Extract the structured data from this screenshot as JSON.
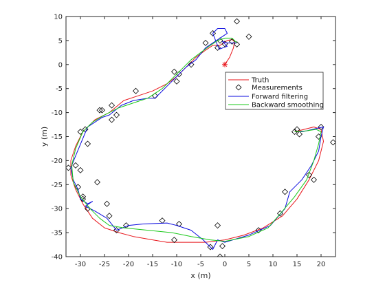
{
  "chart_data": {
    "type": "line",
    "xlabel": "x (m)",
    "ylabel": "y (m)",
    "xlim": [
      -33,
      23
    ],
    "ylim": [
      -40,
      10
    ],
    "xticks": [
      -30,
      -25,
      -20,
      -15,
      -10,
      -5,
      0,
      5,
      10,
      15,
      20
    ],
    "yticks": [
      10,
      5,
      0,
      -5,
      -10,
      -15,
      -20,
      -25,
      -30,
      -35,
      -40
    ],
    "grid": false,
    "legend_position": "right",
    "colors": {
      "truth": "#e8141a",
      "measurements": "#000000",
      "forward": "#0a0adf",
      "backward": "#18c818",
      "start_marker": "#e8141a"
    },
    "start_marker": {
      "x": 0,
      "y": 0
    },
    "series": [
      {
        "name": "Truth",
        "kind": "line",
        "points": [
          [
            0,
            0
          ],
          [
            1,
            1.5
          ],
          [
            1.8,
            3.5
          ],
          [
            2,
            4.8
          ],
          [
            1.5,
            5.2
          ],
          [
            0.5,
            5
          ],
          [
            -1,
            4
          ],
          [
            -2.5,
            4
          ],
          [
            -4,
            3
          ],
          [
            -6,
            1.5
          ],
          [
            -8,
            -0.5
          ],
          [
            -10,
            -2.5
          ],
          [
            -12,
            -4
          ],
          [
            -15,
            -5.5
          ],
          [
            -18,
            -6.5
          ],
          [
            -21,
            -7.5
          ],
          [
            -24,
            -10
          ],
          [
            -27,
            -11.5
          ],
          [
            -29.5,
            -14
          ],
          [
            -31,
            -17
          ],
          [
            -32,
            -20
          ],
          [
            -32,
            -23
          ],
          [
            -31,
            -26
          ],
          [
            -29.5,
            -29
          ],
          [
            -27.5,
            -32
          ],
          [
            -25,
            -34
          ],
          [
            -22,
            -35
          ],
          [
            -19,
            -35.8
          ],
          [
            -15,
            -36.5
          ],
          [
            -12,
            -37
          ],
          [
            -8,
            -37
          ],
          [
            -4,
            -37
          ],
          [
            0,
            -36.5
          ],
          [
            4,
            -35.5
          ],
          [
            8,
            -34
          ],
          [
            12,
            -31.5
          ],
          [
            15,
            -28
          ],
          [
            17.5,
            -24
          ],
          [
            19.5,
            -20
          ],
          [
            20.5,
            -16
          ],
          [
            20,
            -13.5
          ],
          [
            18.5,
            -13
          ],
          [
            16.5,
            -13.5
          ],
          [
            14.5,
            -14
          ]
        ]
      },
      {
        "name": "Measurements",
        "kind": "scatter",
        "points": [
          [
            2.5,
            4.2
          ],
          [
            1.5,
            4.8
          ],
          [
            -1,
            5
          ],
          [
            0,
            4.3
          ],
          [
            -1.5,
            3.5
          ],
          [
            -4,
            4.5
          ],
          [
            -2.5,
            6.5
          ],
          [
            2.5,
            9
          ],
          [
            5,
            5.8
          ],
          [
            -7,
            0
          ],
          [
            -9.5,
            -2
          ],
          [
            -10,
            -3.5
          ],
          [
            -10.5,
            -1.5
          ],
          [
            -14.5,
            -6.5
          ],
          [
            -18.5,
            -5.5
          ],
          [
            -22.5,
            -10.5
          ],
          [
            -23.5,
            -11.5
          ],
          [
            -25.5,
            -9.5
          ],
          [
            -26,
            -9.5
          ],
          [
            -23.5,
            -8.5
          ],
          [
            -30,
            -14
          ],
          [
            -29,
            -13.5
          ],
          [
            -28.5,
            -16.5
          ],
          [
            -32.5,
            -21.5
          ],
          [
            -31,
            -21
          ],
          [
            -30,
            -22
          ],
          [
            -30.5,
            -25.5
          ],
          [
            -26.5,
            -24.5
          ],
          [
            -29.5,
            -28
          ],
          [
            -29.5,
            -27.5
          ],
          [
            -28.5,
            -30
          ],
          [
            -24.5,
            -29
          ],
          [
            -24,
            -31.5
          ],
          [
            -22.5,
            -34.5
          ],
          [
            -20.5,
            -33.5
          ],
          [
            -13,
            -32.5
          ],
          [
            -10.5,
            -36.5
          ],
          [
            -9.5,
            -33.2
          ],
          [
            -1.5,
            -33.5
          ],
          [
            -3,
            -38
          ],
          [
            -1,
            -40
          ],
          [
            -0.5,
            -37.8
          ],
          [
            7,
            -34.5
          ],
          [
            11.5,
            -31
          ],
          [
            12.5,
            -26.5
          ],
          [
            14.5,
            -14
          ],
          [
            15,
            -13.5
          ],
          [
            15.5,
            -14.5
          ],
          [
            17.5,
            -23
          ],
          [
            18.5,
            -24
          ],
          [
            19.5,
            -15
          ],
          [
            20,
            -13
          ],
          [
            22.5,
            -16.2
          ]
        ]
      },
      {
        "name": "Forward filtering",
        "kind": "line",
        "points": [
          [
            2.5,
            4.5
          ],
          [
            0.5,
            4.5
          ],
          [
            -0.5,
            4.8
          ],
          [
            0.5,
            3.8
          ],
          [
            -1.2,
            3.2
          ],
          [
            -2.5,
            6.5
          ],
          [
            -1.5,
            7.5
          ],
          [
            0,
            7.5
          ],
          [
            0.5,
            6.5
          ],
          [
            -4,
            3.5
          ],
          [
            -6,
            1
          ],
          [
            -8,
            -0.5
          ],
          [
            -10,
            -2.5
          ],
          [
            -12,
            -4.5
          ],
          [
            -14.5,
            -7
          ],
          [
            -16,
            -7
          ],
          [
            -19,
            -7.5
          ],
          [
            -21.5,
            -8.5
          ],
          [
            -24,
            -10.5
          ],
          [
            -25.5,
            -11
          ],
          [
            -27,
            -12
          ],
          [
            -28.5,
            -13
          ],
          [
            -31,
            -19
          ],
          [
            -32,
            -21.5
          ],
          [
            -31.5,
            -24
          ],
          [
            -30.5,
            -26
          ],
          [
            -30,
            -28
          ],
          [
            -28.5,
            -29
          ],
          [
            -27.5,
            -28.5
          ],
          [
            -29,
            -29.5
          ],
          [
            -27,
            -30.5
          ],
          [
            -24.5,
            -32
          ],
          [
            -22.5,
            -34.5
          ],
          [
            -20,
            -33.5
          ],
          [
            -17,
            -33.2
          ],
          [
            -12,
            -33
          ],
          [
            -10,
            -33.5
          ],
          [
            -7,
            -34.5
          ],
          [
            -4.5,
            -36.5
          ],
          [
            -2.5,
            -38.5
          ],
          [
            -1.5,
            -36.5
          ],
          [
            0,
            -37
          ],
          [
            5,
            -35.5
          ],
          [
            9.5,
            -33.5
          ],
          [
            12.5,
            -30
          ],
          [
            13.5,
            -26.5
          ],
          [
            16,
            -24
          ],
          [
            18,
            -21
          ],
          [
            19.5,
            -18
          ],
          [
            20,
            -15
          ],
          [
            20.5,
            -13
          ],
          [
            19.5,
            -13.2
          ],
          [
            17,
            -13.8
          ],
          [
            16,
            -14
          ],
          [
            14.5,
            -14
          ]
        ]
      },
      {
        "name": "Backward smoothing",
        "kind": "line",
        "points": [
          [
            2.5,
            4.5
          ],
          [
            1.5,
            5.5
          ],
          [
            0,
            5.5
          ],
          [
            -1.5,
            5
          ],
          [
            -3,
            4
          ],
          [
            -5,
            2.5
          ],
          [
            -7,
            1
          ],
          [
            -9,
            -1
          ],
          [
            -11,
            -3
          ],
          [
            -13,
            -5
          ],
          [
            -16,
            -7
          ],
          [
            -19,
            -8
          ],
          [
            -22,
            -9
          ],
          [
            -25,
            -10.5
          ],
          [
            -27.5,
            -12
          ],
          [
            -29.5,
            -14
          ],
          [
            -31,
            -17.5
          ],
          [
            -31.8,
            -21
          ],
          [
            -31.5,
            -24.5
          ],
          [
            -30,
            -27.5
          ],
          [
            -28,
            -30
          ],
          [
            -26,
            -32
          ],
          [
            -24,
            -33.5
          ],
          [
            -21,
            -34
          ],
          [
            -16,
            -34.5
          ],
          [
            -11,
            -35
          ],
          [
            -7,
            -35.8
          ],
          [
            -3,
            -36.5
          ],
          [
            0,
            -36.8
          ],
          [
            5,
            -35.8
          ],
          [
            9,
            -34
          ],
          [
            12,
            -30.5
          ],
          [
            14.5,
            -27.5
          ],
          [
            17,
            -24
          ],
          [
            18.5,
            -20
          ],
          [
            19.5,
            -16.5
          ],
          [
            20,
            -14
          ],
          [
            19,
            -13.5
          ],
          [
            17,
            -13.8
          ],
          [
            15,
            -14
          ],
          [
            14.5,
            -14
          ]
        ]
      }
    ]
  }
}
